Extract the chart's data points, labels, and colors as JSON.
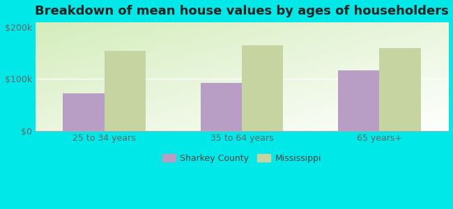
{
  "title": "Breakdown of mean house values by ages of householders",
  "categories": [
    "25 to 34 years",
    "35 to 64 years",
    "65 years+"
  ],
  "sharkey_values": [
    72000,
    93000,
    117000
  ],
  "mississippi_values": [
    155000,
    165000,
    160000
  ],
  "sharkey_color": "#b89ec4",
  "mississippi_color": "#c5d4a0",
  "background_color": "#00e8e8",
  "ylim": [
    0,
    210000
  ],
  "yticks": [
    0,
    100000,
    200000
  ],
  "ytick_labels": [
    "$0",
    "$100k",
    "$200k"
  ],
  "legend_labels": [
    "Sharkey County",
    "Mississippi"
  ],
  "bar_width": 0.3,
  "title_fontsize": 13,
  "tick_fontsize": 9,
  "legend_fontsize": 9
}
